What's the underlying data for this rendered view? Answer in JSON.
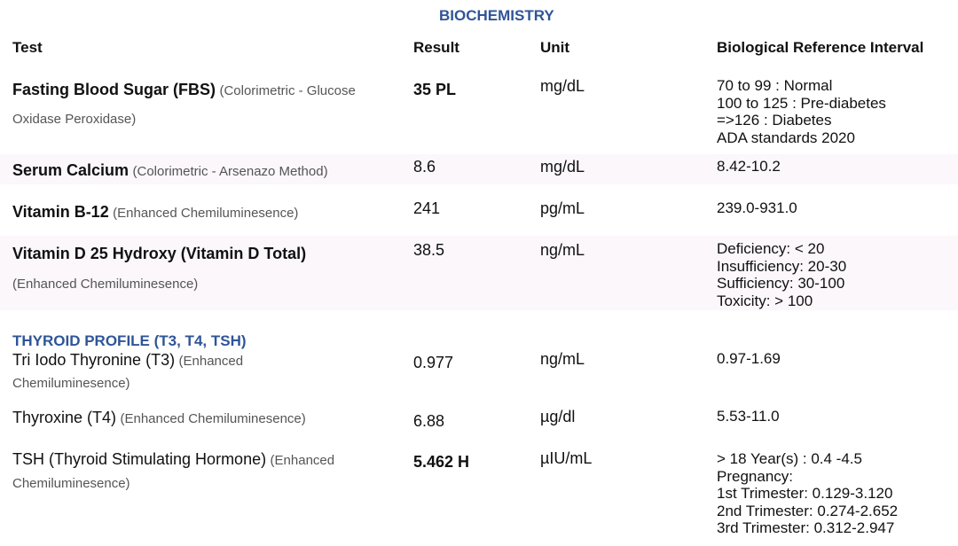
{
  "section_title": "BIOCHEMISTRY",
  "headers": {
    "test": "Test",
    "result": "Result",
    "unit": "Unit",
    "reference": "Biological Reference Interval"
  },
  "rows": [
    {
      "name": "Fasting Blood Sugar (FBS)",
      "method_line1": "(Colorimetric - Glucose",
      "method_line2": "Oxidase Peroxidase)",
      "result": "35 PL",
      "unit": "mg/dL",
      "reference": [
        "70 to 99 : Normal",
        "100 to 125 : Pre-diabetes",
        "=>126 : Diabetes",
        "ADA standards 2020"
      ]
    },
    {
      "name": "Serum Calcium",
      "method": "(Colorimetric - Arsenazo Method)",
      "result": "8.6",
      "unit": "mg/dL",
      "reference": [
        "8.42-10.2"
      ]
    },
    {
      "name": "Vitamin B-12",
      "method": "(Enhanced Chemiluminesence)",
      "result": "241",
      "unit": "pg/mL",
      "reference": [
        "239.0-931.0"
      ]
    },
    {
      "name": "Vitamin D 25 Hydroxy (Vitamin D Total)",
      "method": "(Enhanced Chemiluminesence)",
      "result": "38.5",
      "unit": "ng/mL",
      "reference": [
        "Deficiency: < 20",
        "Insufficiency: 20-30",
        "Sufficiency: 30-100",
        "Toxicity: > 100"
      ]
    }
  ],
  "thyroid": {
    "title": "THYROID PROFILE (T3, T4, TSH)",
    "rows": [
      {
        "name": "Tri Iodo Thyronine (T3)",
        "method_line1": "(Enhanced",
        "method_line2": "Chemiluminesence)",
        "result": "0.977",
        "unit": "ng/mL",
        "reference": [
          "0.97-1.69"
        ]
      },
      {
        "name": "Thyroxine (T4)",
        "method": "(Enhanced Chemiluminesence)",
        "result": "6.88",
        "unit": "µg/dl",
        "reference": [
          "5.53-11.0"
        ]
      },
      {
        "name": "TSH (Thyroid Stimulating Hormone)",
        "method_line1": "(Enhanced",
        "method_line2": "Chemiluminesence)",
        "result": "5.462 H",
        "unit": "µIU/mL",
        "reference": [
          "> 18 Year(s) : 0.4  -4.5",
          "Pregnancy:",
          "1st Trimester: 0.129-3.120",
          "2nd Trimester: 0.274-2.652",
          "3rd Trimester: 0.312-2.947"
        ]
      }
    ]
  }
}
